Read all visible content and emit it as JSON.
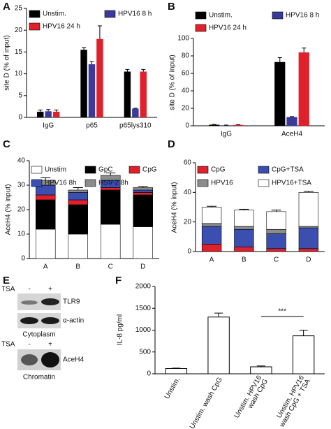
{
  "chart_data": [
    {
      "type": "bar",
      "panel": "A",
      "ylabel": "site D  (% of input)",
      "categories": [
        "IgG",
        "p65",
        "p65lys310"
      ],
      "series": [
        {
          "name": "Unstim.",
          "color": "#000000",
          "values": [
            1.3,
            15.5,
            10.5
          ],
          "errors": [
            0.4,
            0.5,
            0.5
          ]
        },
        {
          "name": "HPV16 8 h",
          "color": "#3a3a9a",
          "values": [
            1.4,
            12.2,
            2
          ],
          "errors": [
            0.4,
            0.6,
            0.1
          ]
        },
        {
          "name": "HPV16 24 h",
          "color": "#e0202a",
          "values": [
            1.3,
            18,
            10.5
          ],
          "errors": [
            0.4,
            3,
            0.5
          ]
        }
      ],
      "ylim": [
        0,
        25
      ],
      "yticks": [
        0,
        5,
        10,
        15,
        20,
        25
      ]
    },
    {
      "type": "bar",
      "panel": "B",
      "ylabel": "site D  (% of input)",
      "categories": [
        "IgG",
        "AceH4"
      ],
      "series": [
        {
          "name": "Unstim.",
          "color": "#000000",
          "values": [
            1.2,
            73
          ],
          "errors": [
            0.3,
            5
          ]
        },
        {
          "name": "HPV16 8 h",
          "color": "#3a3a9a",
          "values": [
            0.6,
            10
          ],
          "errors": [
            0.2,
            0.5
          ]
        },
        {
          "name": "HPV16 24 h",
          "color": "#e0202a",
          "values": [
            1,
            84
          ],
          "errors": [
            0.2,
            5
          ]
        }
      ],
      "ylim": [
        0,
        100
      ],
      "yticks": [
        0,
        20,
        40,
        60,
        80,
        100
      ]
    },
    {
      "type": "stacked_bar",
      "panel": "C",
      "ylabel": "AceH4  (% input)",
      "categories": [
        "A",
        "B",
        "C",
        "D"
      ],
      "series": [
        {
          "name": "Unstim",
          "color": "#ffffff",
          "values": [
            12,
            10,
            14,
            13
          ]
        },
        {
          "name": "GpC",
          "color": "#000000",
          "values": [
            12,
            12,
            14,
            13
          ]
        },
        {
          "name": "CpG",
          "color": "#e0202a",
          "values": [
            2,
            2,
            1,
            1
          ]
        },
        {
          "name": "HPV16 8h",
          "color": "#3a4fb0",
          "values": [
            4,
            3,
            3,
            1
          ]
        },
        {
          "name": "HSV-2 8h",
          "color": "#8c8c8c",
          "values": [
            2,
            1,
            2,
            1
          ],
          "errors": [
            1,
            1,
            1,
            0.5
          ]
        }
      ],
      "ylim": [
        0,
        40
      ],
      "yticks": [
        0,
        10,
        20,
        30,
        40
      ]
    },
    {
      "type": "stacked_bar",
      "panel": "D",
      "ylabel": "AceH4 (% input)",
      "categories": [
        "A",
        "B",
        "C",
        "D"
      ],
      "series": [
        {
          "name": "CpG",
          "color": "#e0202a",
          "values": [
            5,
            3,
            2,
            2
          ]
        },
        {
          "name": "CpG+TSA",
          "color": "#3a4fb0",
          "values": [
            12,
            12,
            10,
            14
          ]
        },
        {
          "name": "HPV16",
          "color": "#8c8c8c",
          "values": [
            2,
            2,
            3,
            1
          ]
        },
        {
          "name": "HPV16+TSA",
          "color": "#ffffff",
          "values": [
            11,
            11,
            12,
            23
          ],
          "errors": [
            0.6,
            0.6,
            1,
            0.6
          ]
        }
      ],
      "ylim": [
        0,
        60
      ],
      "yticks": [
        0,
        20,
        40,
        60
      ]
    },
    {
      "type": "bar",
      "panel": "F",
      "ylabel": "IL-8 pg/ml",
      "categories": [
        [
          "Unstim."
        ],
        [
          "Unstim. wash CpG"
        ],
        [
          "Unstim. HPV16",
          "wash CpG"
        ],
        [
          "Unstim. HPV16",
          "wash CpG + TSA"
        ]
      ],
      "values": [
        120,
        1300,
        160,
        870
      ],
      "errors": [
        10,
        90,
        20,
        130
      ],
      "color": "#ffffff",
      "annotation": "***",
      "ylim": [
        0,
        2000
      ],
      "yticks": [
        0,
        500,
        1000,
        1500,
        2000
      ]
    }
  ],
  "panel_e": {
    "panel": "E",
    "tsa_top": "TSA",
    "minus_top": "-",
    "plus_top": "+",
    "band_1": "TLR9",
    "band_2": "α-actin",
    "fraction_1": "Cytoplasm",
    "tsa_bottom": "TSA",
    "minus_bottom": "-",
    "plus_bottom": "+",
    "band_3": "AceH4",
    "fraction_2": "Chromatin"
  }
}
